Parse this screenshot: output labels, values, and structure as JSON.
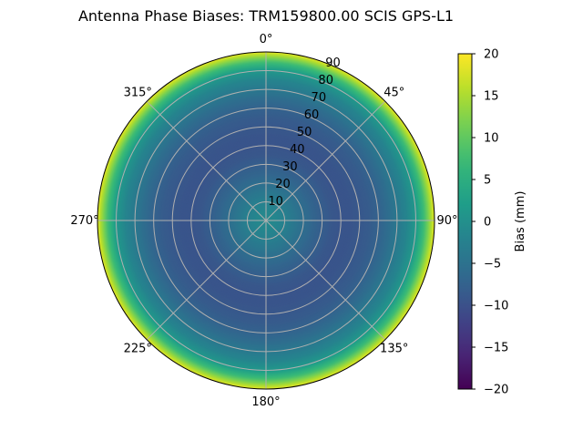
{
  "chart_data": {
    "type": "heatmap",
    "subtype": "polar",
    "title": "Antenna Phase Biases: TRM159800.00    SCIS GPS-L1",
    "colormap": "viridis",
    "azimuth_ticks": [
      "0°",
      "45°",
      "90°",
      "135°",
      "180°",
      "225°",
      "270°",
      "315°"
    ],
    "radial_ticks": [
      "10",
      "20",
      "30",
      "40",
      "50",
      "60",
      "70",
      "80",
      "90"
    ],
    "radial_range": [
      0,
      90
    ],
    "zenith_deg": [
      0,
      5,
      10,
      15,
      20,
      25,
      30,
      35,
      40,
      45,
      50,
      55,
      60,
      65,
      70,
      75,
      80,
      85,
      88,
      90
    ],
    "bias_mm": [
      -1,
      -1.5,
      -2.5,
      -4,
      -5.5,
      -7,
      -8,
      -9,
      -9.5,
      -9.5,
      -9,
      -8.5,
      -7.5,
      -6,
      -4,
      -2,
      1,
      8,
      14,
      18
    ],
    "colorbar": {
      "label": "Bias (mm)",
      "range": [
        -20,
        20
      ],
      "ticks": [
        "20",
        "15",
        "10",
        "5",
        "0",
        "−5",
        "−10",
        "−15",
        "−20"
      ]
    },
    "grid": true
  }
}
